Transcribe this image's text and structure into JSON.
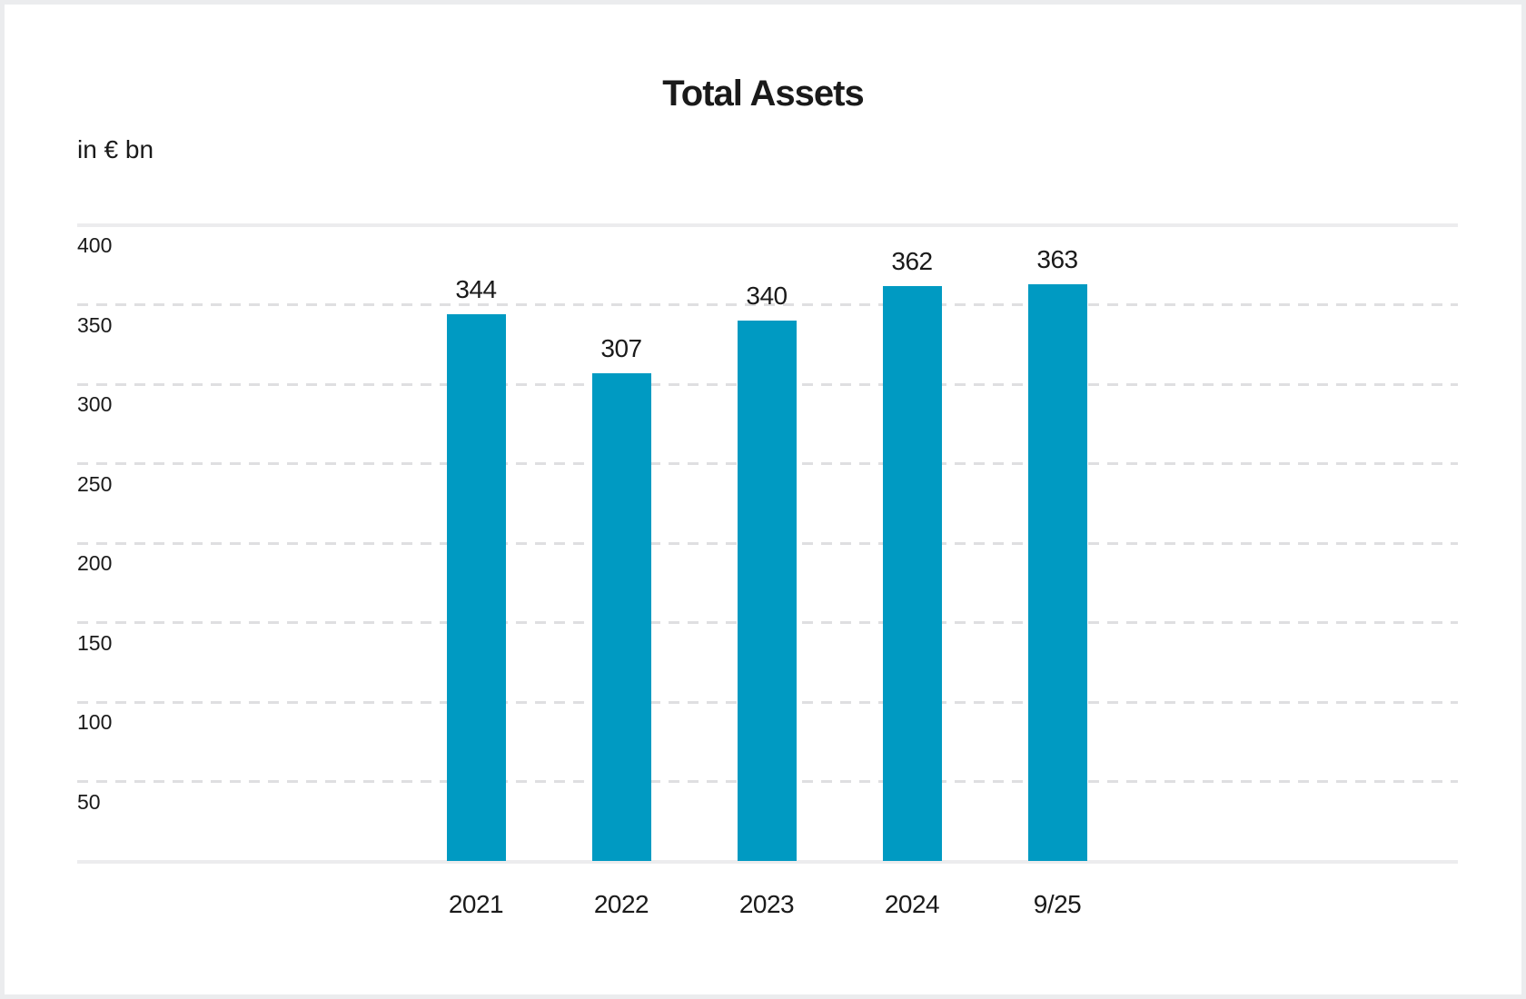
{
  "chart_data": {
    "type": "bar",
    "title": "Total Assets",
    "ylabel": "in € bn",
    "xlabel": "",
    "categories": [
      "2021",
      "2022",
      "2023",
      "2024",
      "9/25"
    ],
    "values": [
      344,
      307,
      340,
      362,
      363
    ],
    "value_labels": [
      "344",
      "307",
      "340",
      "362",
      "363"
    ],
    "ylim": [
      0,
      400
    ],
    "yticks": [
      400,
      350,
      300,
      250,
      200,
      150,
      100,
      50
    ],
    "grid": "horizontal; solid line at 400 and baseline, dashed lines at other ticks",
    "legend": "none",
    "bar_color": "#009ac2"
  },
  "colors": {
    "bar": "#009ac2",
    "text": "#1a1a1a",
    "grid_solid": "#ececee",
    "grid_dashed": "#dfdfe1",
    "frame_border": "#ebecee",
    "background": "#ffffff"
  }
}
